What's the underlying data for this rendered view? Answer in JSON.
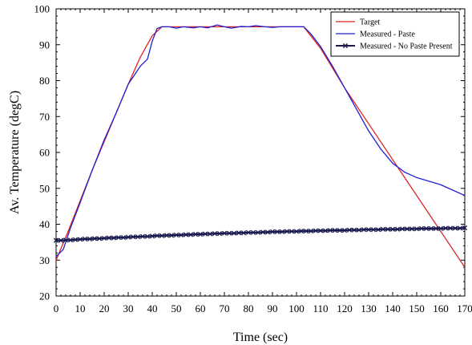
{
  "chart_data": {
    "type": "line",
    "title": "",
    "xlabel": "Time (sec)",
    "ylabel": "Av. Temperature (degC)",
    "xlim": [
      0,
      170
    ],
    "ylim": [
      20,
      100
    ],
    "xticks": [
      0,
      10,
      20,
      30,
      40,
      50,
      60,
      70,
      80,
      90,
      100,
      110,
      120,
      130,
      140,
      150,
      160,
      170
    ],
    "yticks": [
      20,
      30,
      40,
      50,
      60,
      70,
      80,
      90,
      100
    ],
    "grid": false,
    "legend_position": "top-right",
    "series": [
      {
        "name": "Target",
        "color": "#e02020",
        "marker": "none",
        "x": [
          0,
          5,
          10,
          15,
          20,
          25,
          30,
          35,
          40,
          44,
          50,
          60,
          70,
          80,
          90,
          100,
          103,
          110,
          120,
          130,
          140,
          150,
          160,
          170
        ],
        "y": [
          30,
          38,
          46.5,
          55,
          63,
          71,
          79,
          86.5,
          92.5,
          95,
          95,
          95,
          95,
          95,
          95,
          95,
          95,
          89,
          78,
          68,
          58,
          48,
          38,
          28
        ]
      },
      {
        "name": "Measured - Paste",
        "color": "#2020d0",
        "marker": "none",
        "x": [
          0,
          3,
          6,
          10,
          15,
          20,
          25,
          30,
          35,
          38,
          40,
          42,
          44,
          47,
          50,
          53,
          57,
          60,
          63,
          67,
          70,
          73,
          77,
          80,
          83,
          87,
          90,
          93,
          97,
          100,
          103,
          106,
          110,
          115,
          120,
          125,
          130,
          135,
          140,
          145,
          150,
          155,
          160,
          165,
          170
        ],
        "y": [
          31,
          33,
          39,
          46,
          55,
          63.5,
          71,
          79,
          84,
          86,
          91,
          94.5,
          95,
          95,
          94.6,
          95,
          94.7,
          95,
          94.7,
          95.5,
          95,
          94.6,
          95.1,
          95,
          95.3,
          95,
          94.8,
          95,
          95,
          95,
          95,
          93,
          89.5,
          84,
          78,
          72,
          66,
          61,
          57,
          54.5,
          53,
          52,
          51,
          49.5,
          48
        ]
      },
      {
        "name": "Measured - No Paste Present",
        "color": "#1a1a50",
        "marker": "x",
        "x": [
          0,
          2,
          4,
          6,
          8,
          10,
          12,
          14,
          16,
          18,
          20,
          22,
          24,
          26,
          28,
          30,
          32,
          34,
          36,
          38,
          40,
          42,
          44,
          46,
          48,
          50,
          52,
          54,
          56,
          58,
          60,
          62,
          64,
          66,
          68,
          70,
          72,
          74,
          76,
          78,
          80,
          82,
          84,
          86,
          88,
          90,
          92,
          94,
          96,
          98,
          100,
          102,
          104,
          106,
          108,
          110,
          112,
          114,
          116,
          118,
          120,
          122,
          124,
          126,
          128,
          130,
          132,
          134,
          136,
          138,
          140,
          142,
          144,
          146,
          148,
          150,
          152,
          154,
          156,
          158,
          160,
          162,
          164,
          166,
          168,
          170
        ],
        "y": [
          35.5,
          35.5,
          35.6,
          35.6,
          35.7,
          35.8,
          35.9,
          35.9,
          36.0,
          36.0,
          36.1,
          36.2,
          36.2,
          36.3,
          36.3,
          36.4,
          36.5,
          36.5,
          36.6,
          36.6,
          36.7,
          36.8,
          36.8,
          36.9,
          36.9,
          37.0,
          37.0,
          37.1,
          37.1,
          37.2,
          37.2,
          37.3,
          37.3,
          37.4,
          37.4,
          37.5,
          37.5,
          37.5,
          37.6,
          37.6,
          37.7,
          37.7,
          37.7,
          37.8,
          37.8,
          37.9,
          37.9,
          37.9,
          38.0,
          38.0,
          38.0,
          38.1,
          38.1,
          38.1,
          38.2,
          38.2,
          38.2,
          38.3,
          38.3,
          38.3,
          38.3,
          38.4,
          38.4,
          38.4,
          38.5,
          38.5,
          38.5,
          38.5,
          38.6,
          38.6,
          38.6,
          38.6,
          38.7,
          38.7,
          38.7,
          38.7,
          38.8,
          38.8,
          38.8,
          38.8,
          38.8,
          38.9,
          38.9,
          38.9,
          38.9,
          39.0
        ]
      }
    ]
  }
}
